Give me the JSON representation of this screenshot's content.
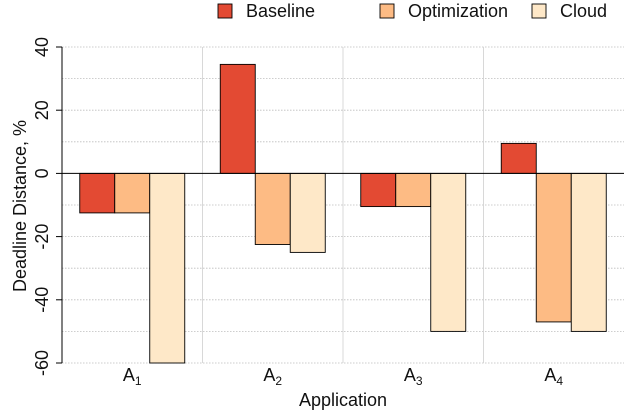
{
  "chart_data": {
    "type": "bar",
    "title": "",
    "xlabel": "Application",
    "ylabel": "Deadline Distance, %",
    "ylim": [
      -60,
      40
    ],
    "yticks": [
      -60,
      -40,
      -20,
      0,
      20,
      40
    ],
    "grid": true,
    "legend_position": "top-right",
    "categories": [
      {
        "base": "A",
        "sub": "1"
      },
      {
        "base": "A",
        "sub": "2"
      },
      {
        "base": "A",
        "sub": "3"
      },
      {
        "base": "A",
        "sub": "4"
      }
    ],
    "series": [
      {
        "name": "Baseline",
        "color": "#e34a33",
        "values": [
          -12.5,
          34.5,
          -10.5,
          9.5
        ]
      },
      {
        "name": "Optimization",
        "color": "#fdbb84",
        "values": [
          -12.5,
          -22.5,
          -10.5,
          -47
        ]
      },
      {
        "name": "Cloud",
        "color": "#fee8c8",
        "values": [
          -60,
          -25,
          -50,
          -50
        ]
      }
    ]
  }
}
